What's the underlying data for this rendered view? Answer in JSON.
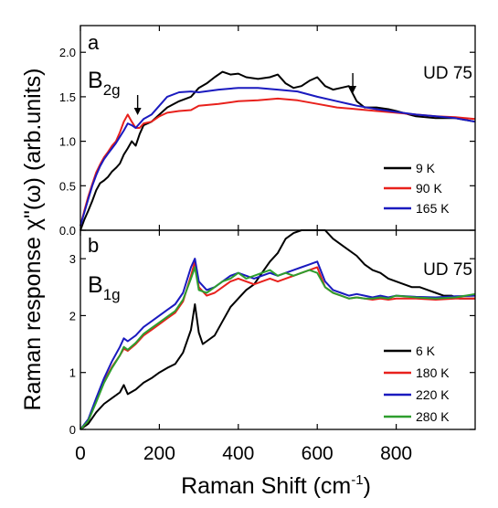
{
  "figure": {
    "ylabel": "Raman response  χ\"(ω)  (arb.units)",
    "xlabel": "Raman Shift  (cm",
    "xlabel_sup": "-1",
    "xlabel_end": ")"
  },
  "chart_data": [
    {
      "type": "line",
      "panel_label": "a",
      "symmetry": "B",
      "symmetry_sub": "2g",
      "sample": "UD 75",
      "xlabel": "Raman Shift (cm-1)",
      "ylabel": "Raman response χ\"(ω) (arb.units)",
      "xlim": [
        0,
        1000
      ],
      "ylim": [
        0,
        2.3
      ],
      "yticks": [
        0.0,
        0.5,
        1.0,
        1.5,
        2.0
      ],
      "ytick_labels": [
        "0.0",
        "0.5",
        "1.0",
        "1.5",
        "2.0"
      ],
      "xticks": [
        0,
        200,
        400,
        600,
        800
      ],
      "legend_position": "lower-right",
      "arrows_x": [
        145,
        690
      ],
      "series": [
        {
          "name": "9 K",
          "color": "#000000",
          "x": [
            0,
            10,
            20,
            30,
            40,
            50,
            60,
            70,
            80,
            90,
            100,
            110,
            120,
            130,
            140,
            150,
            160,
            180,
            200,
            220,
            250,
            280,
            300,
            320,
            340,
            360,
            380,
            400,
            420,
            450,
            480,
            500,
            520,
            540,
            560,
            580,
            600,
            620,
            640,
            660,
            680,
            700,
            720,
            750,
            780,
            800,
            850,
            900,
            950,
            1000
          ],
          "y": [
            0.0,
            0.12,
            0.22,
            0.33,
            0.45,
            0.53,
            0.56,
            0.6,
            0.66,
            0.7,
            0.75,
            0.85,
            0.92,
            1.0,
            0.95,
            1.08,
            1.18,
            1.22,
            1.3,
            1.38,
            1.45,
            1.5,
            1.6,
            1.65,
            1.72,
            1.78,
            1.75,
            1.76,
            1.72,
            1.7,
            1.72,
            1.75,
            1.65,
            1.6,
            1.62,
            1.68,
            1.72,
            1.62,
            1.58,
            1.6,
            1.62,
            1.45,
            1.38,
            1.38,
            1.36,
            1.34,
            1.28,
            1.26,
            1.26,
            1.22
          ]
        },
        {
          "name": "90 K",
          "color": "#e8211c",
          "x": [
            0,
            10,
            20,
            30,
            40,
            50,
            60,
            70,
            80,
            90,
            100,
            110,
            120,
            130,
            140,
            150,
            160,
            180,
            200,
            220,
            250,
            280,
            300,
            350,
            400,
            450,
            500,
            550,
            600,
            650,
            700,
            750,
            800,
            850,
            900,
            950,
            1000
          ],
          "y": [
            0.05,
            0.22,
            0.38,
            0.52,
            0.65,
            0.74,
            0.82,
            0.88,
            0.95,
            1.0,
            1.1,
            1.22,
            1.3,
            1.22,
            1.15,
            1.15,
            1.2,
            1.22,
            1.28,
            1.32,
            1.34,
            1.35,
            1.4,
            1.42,
            1.45,
            1.46,
            1.48,
            1.46,
            1.42,
            1.38,
            1.36,
            1.34,
            1.32,
            1.3,
            1.28,
            1.27,
            1.25
          ]
        },
        {
          "name": "165 K",
          "color": "#1a1abf",
          "x": [
            0,
            10,
            20,
            30,
            40,
            50,
            60,
            70,
            80,
            90,
            100,
            110,
            120,
            130,
            140,
            150,
            160,
            180,
            200,
            220,
            250,
            280,
            300,
            350,
            400,
            450,
            500,
            550,
            600,
            650,
            700,
            750,
            800,
            850,
            900,
            950,
            1000
          ],
          "y": [
            0.05,
            0.2,
            0.35,
            0.5,
            0.62,
            0.72,
            0.8,
            0.86,
            0.92,
            0.98,
            1.05,
            1.12,
            1.2,
            1.18,
            1.15,
            1.2,
            1.25,
            1.3,
            1.4,
            1.5,
            1.55,
            1.56,
            1.55,
            1.58,
            1.6,
            1.6,
            1.58,
            1.56,
            1.5,
            1.45,
            1.4,
            1.36,
            1.33,
            1.3,
            1.28,
            1.26,
            1.22
          ]
        }
      ]
    },
    {
      "type": "line",
      "panel_label": "b",
      "symmetry": "B",
      "symmetry_sub": "1g",
      "sample": "UD 75",
      "xlabel": "Raman Shift (cm-1)",
      "ylabel": "Raman response χ\"(ω) (arb.units)",
      "xlim": [
        0,
        1000
      ],
      "ylim": [
        0,
        3.5
      ],
      "yticks": [
        0,
        1,
        2,
        3
      ],
      "ytick_labels": [
        "0",
        "1",
        "2",
        "3"
      ],
      "xticks": [
        0,
        200,
        400,
        600,
        800
      ],
      "xtick_labels": [
        "0",
        "200",
        "400",
        "600",
        "800"
      ],
      "legend_position": "lower-right",
      "series": [
        {
          "name": "6 K",
          "color": "#000000",
          "x": [
            0,
            20,
            40,
            60,
            80,
            100,
            110,
            120,
            140,
            160,
            180,
            200,
            220,
            240,
            260,
            280,
            290,
            300,
            310,
            320,
            340,
            360,
            380,
            400,
            420,
            440,
            460,
            480,
            500,
            520,
            540,
            560,
            580,
            600,
            620,
            640,
            660,
            680,
            700,
            720,
            740,
            760,
            780,
            800,
            820,
            840,
            860,
            880,
            900,
            920,
            940,
            960,
            980,
            1000
          ],
          "y": [
            0.0,
            0.1,
            0.3,
            0.45,
            0.55,
            0.65,
            0.78,
            0.62,
            0.7,
            0.82,
            0.9,
            1.0,
            1.08,
            1.15,
            1.35,
            1.75,
            2.2,
            1.7,
            1.5,
            1.55,
            1.65,
            1.9,
            2.15,
            2.3,
            2.45,
            2.55,
            2.75,
            2.95,
            3.1,
            3.35,
            3.45,
            3.5,
            3.5,
            3.5,
            3.5,
            3.35,
            3.25,
            3.15,
            3.05,
            2.9,
            2.8,
            2.75,
            2.65,
            2.6,
            2.55,
            2.5,
            2.5,
            2.45,
            2.4,
            2.35,
            2.35,
            2.3,
            2.3,
            2.3
          ]
        },
        {
          "name": "180 K",
          "color": "#e8211c",
          "x": [
            0,
            20,
            40,
            60,
            80,
            100,
            110,
            120,
            140,
            160,
            180,
            200,
            220,
            240,
            260,
            280,
            290,
            300,
            320,
            340,
            360,
            380,
            400,
            420,
            440,
            460,
            480,
            500,
            520,
            540,
            560,
            580,
            600,
            620,
            640,
            660,
            680,
            700,
            720,
            740,
            760,
            780,
            800,
            850,
            900,
            950,
            1000
          ],
          "y": [
            0.0,
            0.15,
            0.5,
            0.85,
            1.1,
            1.3,
            1.42,
            1.38,
            1.5,
            1.65,
            1.75,
            1.85,
            1.95,
            2.05,
            2.25,
            2.7,
            2.95,
            2.5,
            2.35,
            2.4,
            2.5,
            2.6,
            2.65,
            2.6,
            2.55,
            2.6,
            2.65,
            2.6,
            2.65,
            2.7,
            2.75,
            2.8,
            2.85,
            2.5,
            2.4,
            2.35,
            2.3,
            2.32,
            2.3,
            2.28,
            2.3,
            2.28,
            2.3,
            2.3,
            2.28,
            2.3,
            2.3
          ]
        },
        {
          "name": "220 K",
          "color": "#1a1abf",
          "x": [
            0,
            20,
            40,
            60,
            80,
            100,
            110,
            120,
            140,
            160,
            180,
            200,
            220,
            240,
            260,
            280,
            290,
            300,
            320,
            340,
            360,
            380,
            400,
            420,
            440,
            460,
            480,
            500,
            520,
            540,
            560,
            580,
            600,
            620,
            640,
            660,
            680,
            700,
            720,
            740,
            760,
            780,
            800,
            850,
            900,
            950,
            1000
          ],
          "y": [
            0.0,
            0.18,
            0.55,
            0.9,
            1.2,
            1.45,
            1.6,
            1.55,
            1.65,
            1.8,
            1.9,
            2.0,
            2.1,
            2.2,
            2.4,
            2.85,
            3.0,
            2.6,
            2.45,
            2.5,
            2.6,
            2.7,
            2.75,
            2.7,
            2.65,
            2.7,
            2.75,
            2.7,
            2.75,
            2.8,
            2.85,
            2.9,
            2.95,
            2.6,
            2.45,
            2.4,
            2.35,
            2.38,
            2.35,
            2.32,
            2.35,
            2.32,
            2.35,
            2.33,
            2.32,
            2.34,
            2.35
          ]
        },
        {
          "name": "280 K",
          "color": "#2e9e2e",
          "x": [
            0,
            20,
            40,
            60,
            80,
            100,
            110,
            120,
            140,
            160,
            180,
            200,
            220,
            240,
            260,
            280,
            290,
            300,
            320,
            340,
            360,
            380,
            400,
            420,
            440,
            460,
            480,
            500,
            520,
            540,
            560,
            580,
            600,
            620,
            640,
            660,
            680,
            700,
            720,
            740,
            760,
            780,
            800,
            850,
            900,
            950,
            1000
          ],
          "y": [
            0.0,
            0.15,
            0.48,
            0.82,
            1.08,
            1.3,
            1.45,
            1.4,
            1.52,
            1.68,
            1.78,
            1.88,
            1.98,
            2.08,
            2.28,
            2.65,
            2.85,
            2.45,
            2.4,
            2.5,
            2.6,
            2.65,
            2.75,
            2.65,
            2.7,
            2.75,
            2.8,
            2.7,
            2.75,
            2.7,
            2.75,
            2.8,
            2.75,
            2.5,
            2.4,
            2.35,
            2.3,
            2.32,
            2.3,
            2.3,
            2.32,
            2.3,
            2.35,
            2.32,
            2.3,
            2.32,
            2.38
          ]
        }
      ]
    }
  ]
}
